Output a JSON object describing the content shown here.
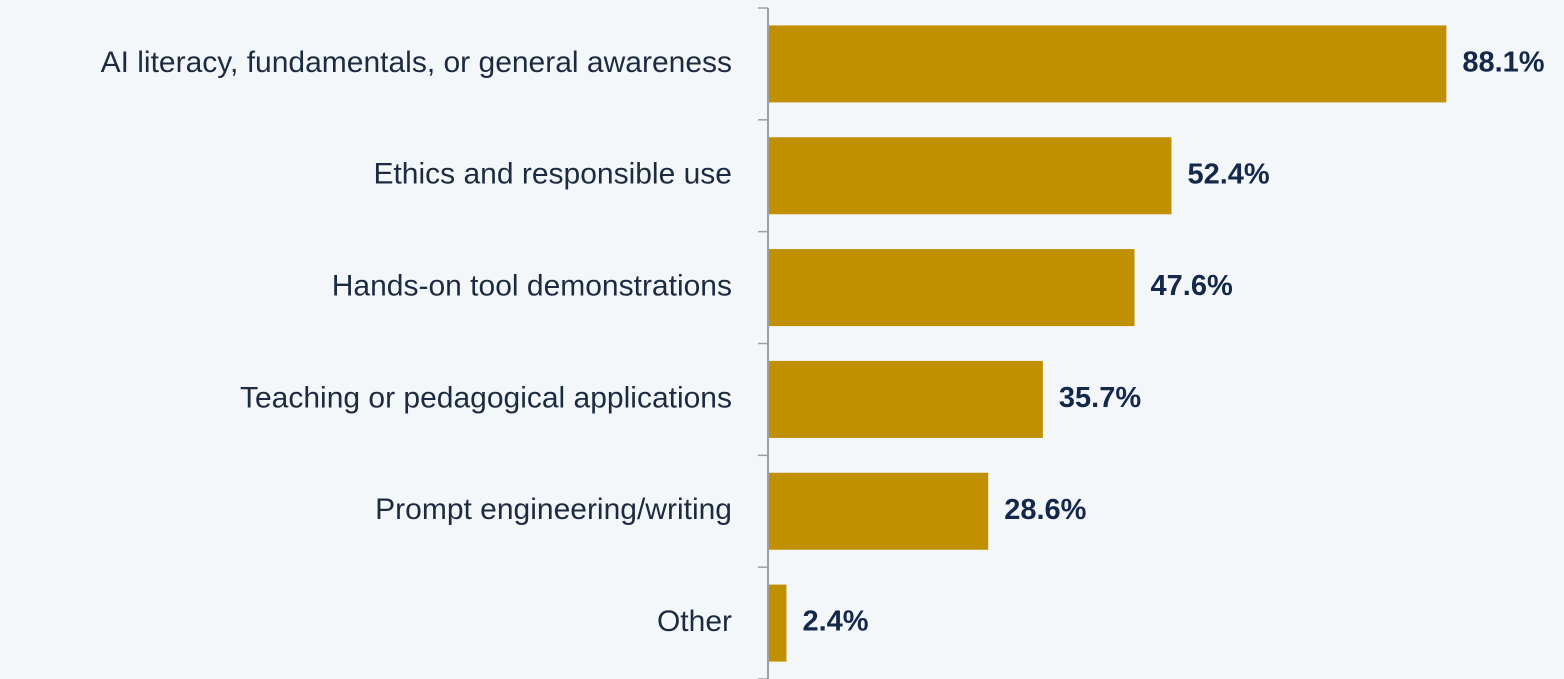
{
  "chart_data": {
    "type": "bar",
    "orientation": "horizontal",
    "categories": [
      "AI literacy, fundamentals, or general awareness",
      "Ethics and responsible use",
      "Hands-on tool demonstrations",
      "Teaching or pedagogical applications",
      "Prompt engineering/writing",
      "Other"
    ],
    "values": [
      88.1,
      52.4,
      47.6,
      35.7,
      28.6,
      2.4
    ],
    "value_labels": [
      "88.1%",
      "52.4%",
      "47.6%",
      "35.7%",
      "28.6%",
      "2.4%"
    ],
    "color": "#c09000"
  }
}
